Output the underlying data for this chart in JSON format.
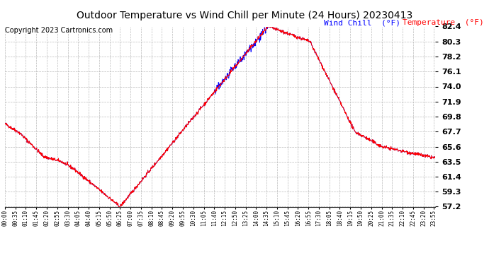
{
  "title": "Outdoor Temperature vs Wind Chill per Minute (24 Hours) 20230413",
  "copyright": "Copyright 2023 Cartronics.com",
  "legend_wind_chill": "Wind Chill  (°F)",
  "legend_temperature": "Temperature  (°F)",
  "wind_chill_color": "blue",
  "temperature_color": "red",
  "background_color": "#ffffff",
  "grid_color": "#aaaaaa",
  "yticks": [
    57.2,
    59.3,
    61.4,
    63.5,
    65.6,
    67.7,
    69.8,
    71.9,
    74.0,
    76.1,
    78.2,
    80.3,
    82.4
  ],
  "ymin": 57.2,
  "ymax": 82.4,
  "xtick_labels": [
    "00:00",
    "00:35",
    "01:10",
    "01:45",
    "02:20",
    "02:55",
    "03:30",
    "04:05",
    "04:40",
    "05:15",
    "05:50",
    "06:25",
    "07:00",
    "07:35",
    "08:10",
    "08:45",
    "09:20",
    "09:55",
    "10:30",
    "11:05",
    "11:40",
    "12:15",
    "12:50",
    "13:25",
    "14:00",
    "14:35",
    "15:10",
    "15:45",
    "16:20",
    "16:55",
    "17:30",
    "18:05",
    "18:40",
    "19:15",
    "19:50",
    "20:25",
    "21:00",
    "21:35",
    "22:10",
    "22:45",
    "23:20",
    "23:55"
  ],
  "title_fontsize": 10,
  "copyright_fontsize": 7,
  "legend_fontsize": 8,
  "ytick_fontsize": 8,
  "xtick_fontsize": 5.5
}
